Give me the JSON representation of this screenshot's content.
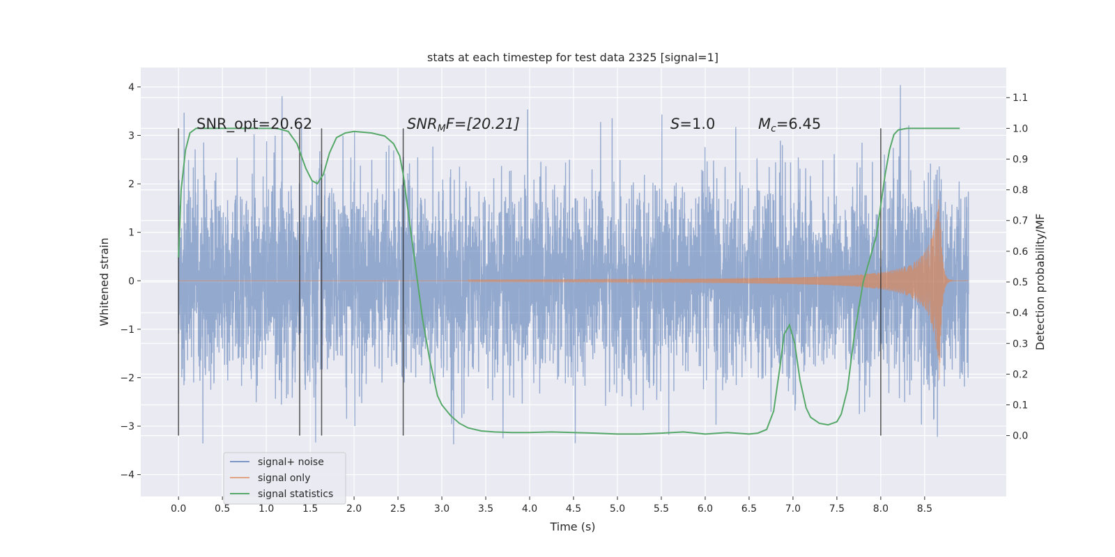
{
  "chart_data": {
    "type": "line",
    "title": "stats at each timestep for test data 2325 [signal=1]",
    "xlabel": "Time (s)",
    "ylabel": "Whitened strain",
    "ylabel_right": "Detection probability/MF",
    "xlim": [
      -0.43,
      9.43
    ],
    "ylim": [
      -4.45,
      4.4
    ],
    "ylim_right": [
      -0.198,
      1.198
    ],
    "x_ticks": [
      0.0,
      0.5,
      1.0,
      1.5,
      2.0,
      2.5,
      3.0,
      3.5,
      4.0,
      4.5,
      5.0,
      5.5,
      6.0,
      6.5,
      7.0,
      7.5,
      8.0,
      8.5
    ],
    "x_tick_labels": [
      "0.0",
      "0.5",
      "1.0",
      "1.5",
      "2.0",
      "2.5",
      "3.0",
      "3.5",
      "4.0",
      "4.5",
      "5.0",
      "5.5",
      "6.0",
      "6.5",
      "7.0",
      "7.5",
      "8.0",
      "8.5"
    ],
    "y_ticks": [
      -4,
      -3,
      -2,
      -1,
      0,
      1,
      2,
      3,
      4
    ],
    "y_tick_labels": [
      "−4",
      "−3",
      "−2",
      "−1",
      "0",
      "1",
      "2",
      "3",
      "4"
    ],
    "y_ticks_right": [
      0.0,
      0.1,
      0.2,
      0.3,
      0.4,
      0.5,
      0.6,
      0.7,
      0.8,
      0.9,
      1.0,
      1.1
    ],
    "y_tick_labels_right": [
      "0.0",
      "0.1",
      "0.2",
      "0.3",
      "0.4",
      "0.5",
      "0.6",
      "0.7",
      "0.8",
      "0.9",
      "1.0",
      "1.1"
    ],
    "grid": true,
    "legend_position": "lower-left",
    "colors": {
      "noise": "#4c72b0",
      "signal": "#dd8452",
      "stats": "#55a868",
      "background": "#eaeaf2"
    },
    "annotations": {
      "snr_opt": "SNR_opt=20.62",
      "snr_mf_base": "SNR",
      "snr_mf_sub": "M",
      "snr_mf_rest": "F=[20.21]",
      "s_base": "S",
      "s_rest": "=1.0",
      "mc_base": "M",
      "mc_sub": "c",
      "mc_rest": "=6.45"
    },
    "vertical_markers_x": [
      0.0,
      1.38,
      1.63,
      2.56,
      8.0
    ],
    "series": [
      {
        "name": "signal+ noise",
        "description": "whitened noisy strain, roughly Gaussian with std about 1, sampled from 0 to 9 s"
      },
      {
        "name": "signal only",
        "description": "chirp waveform whose amplitude grows from ~0 near 3.5 s to about 2.1 at merger near 8.67 s, then ring-down"
      },
      {
        "name": "signal statistics",
        "x": [
          0.0,
          0.03,
          0.08,
          0.13,
          0.2,
          0.3,
          0.5,
          0.8,
          1.0,
          1.1,
          1.15,
          1.25,
          1.35,
          1.45,
          1.52,
          1.58,
          1.65,
          1.72,
          1.8,
          1.9,
          2.0,
          2.2,
          2.35,
          2.45,
          2.52,
          2.56,
          2.62,
          2.7,
          2.78,
          2.86,
          2.95,
          3.0,
          3.1,
          3.2,
          3.3,
          3.45,
          3.6,
          3.8,
          4.0,
          4.25,
          4.5,
          4.75,
          5.0,
          5.25,
          5.5,
          5.75,
          6.0,
          6.25,
          6.5,
          6.6,
          6.7,
          6.78,
          6.85,
          6.9,
          6.96,
          7.02,
          7.08,
          7.15,
          7.2,
          7.3,
          7.4,
          7.5,
          7.55,
          7.62,
          7.7,
          7.8,
          7.9,
          7.95,
          8.0,
          8.05,
          8.1,
          8.15,
          8.2,
          8.3,
          8.5,
          8.7,
          8.9
        ],
        "values": [
          0.58,
          0.8,
          0.93,
          0.985,
          1.0,
          1.0,
          1.0,
          1.0,
          1.0,
          1.0,
          0.998,
          0.99,
          0.95,
          0.87,
          0.83,
          0.82,
          0.85,
          0.92,
          0.97,
          0.985,
          0.99,
          0.985,
          0.975,
          0.95,
          0.91,
          0.85,
          0.72,
          0.55,
          0.38,
          0.25,
          0.13,
          0.1,
          0.065,
          0.04,
          0.025,
          0.015,
          0.012,
          0.01,
          0.01,
          0.012,
          0.01,
          0.008,
          0.005,
          0.005,
          0.008,
          0.012,
          0.005,
          0.01,
          0.005,
          0.008,
          0.02,
          0.08,
          0.22,
          0.33,
          0.36,
          0.3,
          0.18,
          0.09,
          0.06,
          0.04,
          0.035,
          0.045,
          0.07,
          0.15,
          0.33,
          0.5,
          0.6,
          0.65,
          0.75,
          0.85,
          0.93,
          0.98,
          0.995,
          1.0,
          1.0,
          1.0,
          1.0
        ]
      }
    ]
  }
}
